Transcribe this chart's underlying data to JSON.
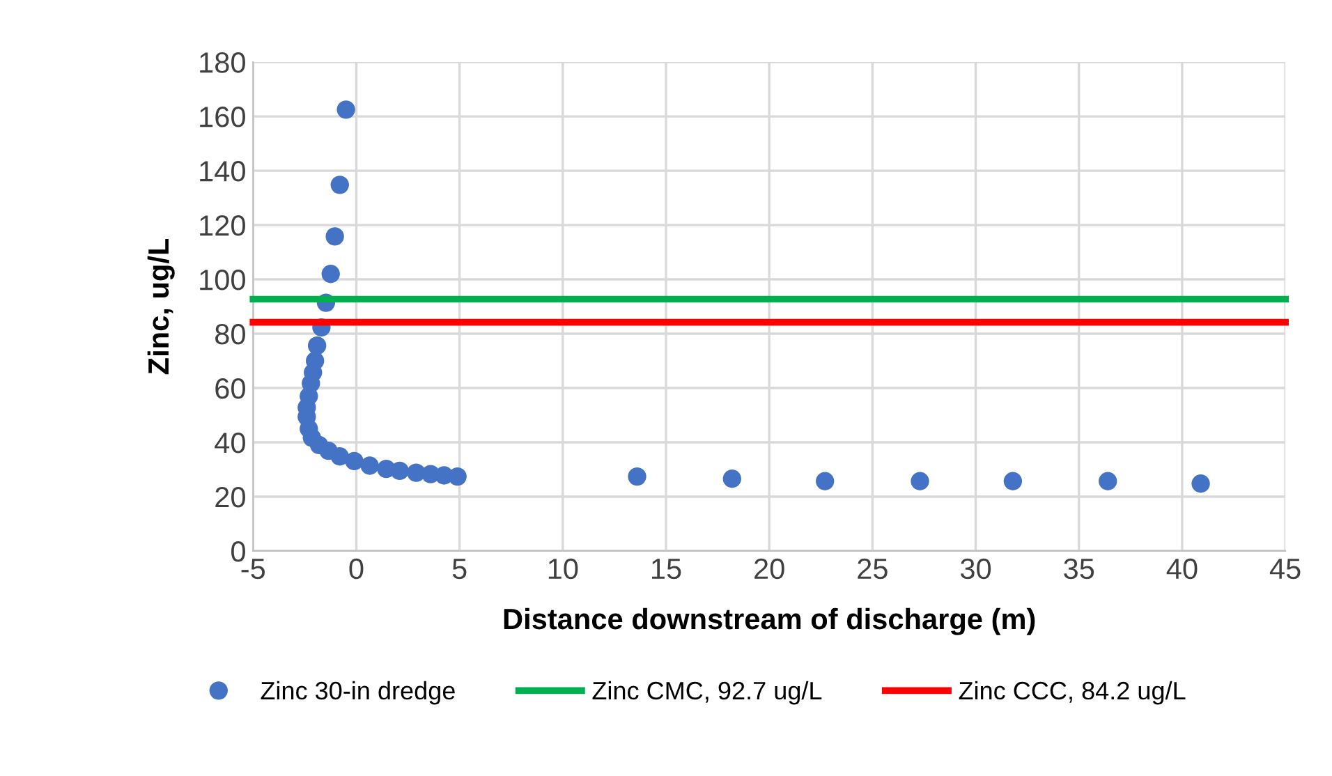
{
  "chart_data": {
    "type": "scatter",
    "xlabel": "Distance downstream of discharge (m)",
    "ylabel": "Zinc, ug/L",
    "xlim": [
      -5,
      45
    ],
    "xticks": [
      -5,
      0,
      5,
      10,
      15,
      20,
      25,
      30,
      35,
      40,
      45
    ],
    "ylim": [
      0,
      180
    ],
    "yticks": [
      0,
      20,
      40,
      60,
      80,
      100,
      120,
      140,
      160,
      180
    ],
    "grid": true,
    "legend": "bottom",
    "marker": "circle",
    "series": [
      {
        "name": "Zinc 30-in dredge",
        "color": "#4472c4",
        "x": [
          -0.5,
          -0.8,
          -1.04,
          -1.24,
          -1.47,
          -1.69,
          -1.9,
          -2.0,
          -2.1,
          -2.2,
          -2.3,
          -2.4,
          -2.4,
          -2.3,
          -2.15,
          -1.8,
          -1.35,
          -0.8,
          -0.1,
          0.65,
          1.45,
          2.1,
          2.9,
          3.6,
          4.25,
          4.9,
          13.6,
          18.2,
          22.7,
          27.3,
          31.8,
          36.4,
          40.9
        ],
        "values": [
          162.5,
          134.8,
          115.8,
          102,
          91.4,
          82.3,
          75.6,
          70,
          65.7,
          61.7,
          57,
          52.8,
          49.4,
          45,
          41.7,
          39,
          36.9,
          34.8,
          33.1,
          31.4,
          30.2,
          29.5,
          28.8,
          28.3,
          27.8,
          27.4,
          27.4,
          26.6,
          25.7,
          25.7,
          25.7,
          25.7,
          24.8
        ]
      },
      {
        "name": "Zinc CMC, 92.7 ug/L",
        "color": "#00b050",
        "type": "line",
        "marker": "none",
        "x": [
          -5,
          45
        ],
        "values": [
          92.7,
          92.7
        ]
      },
      {
        "name": "Zinc CCC, 84.2 ug/L",
        "color": "#ff0000",
        "type": "line",
        "marker": "none",
        "x": [
          -5,
          45
        ],
        "values": [
          84.2,
          84.2
        ]
      }
    ]
  }
}
